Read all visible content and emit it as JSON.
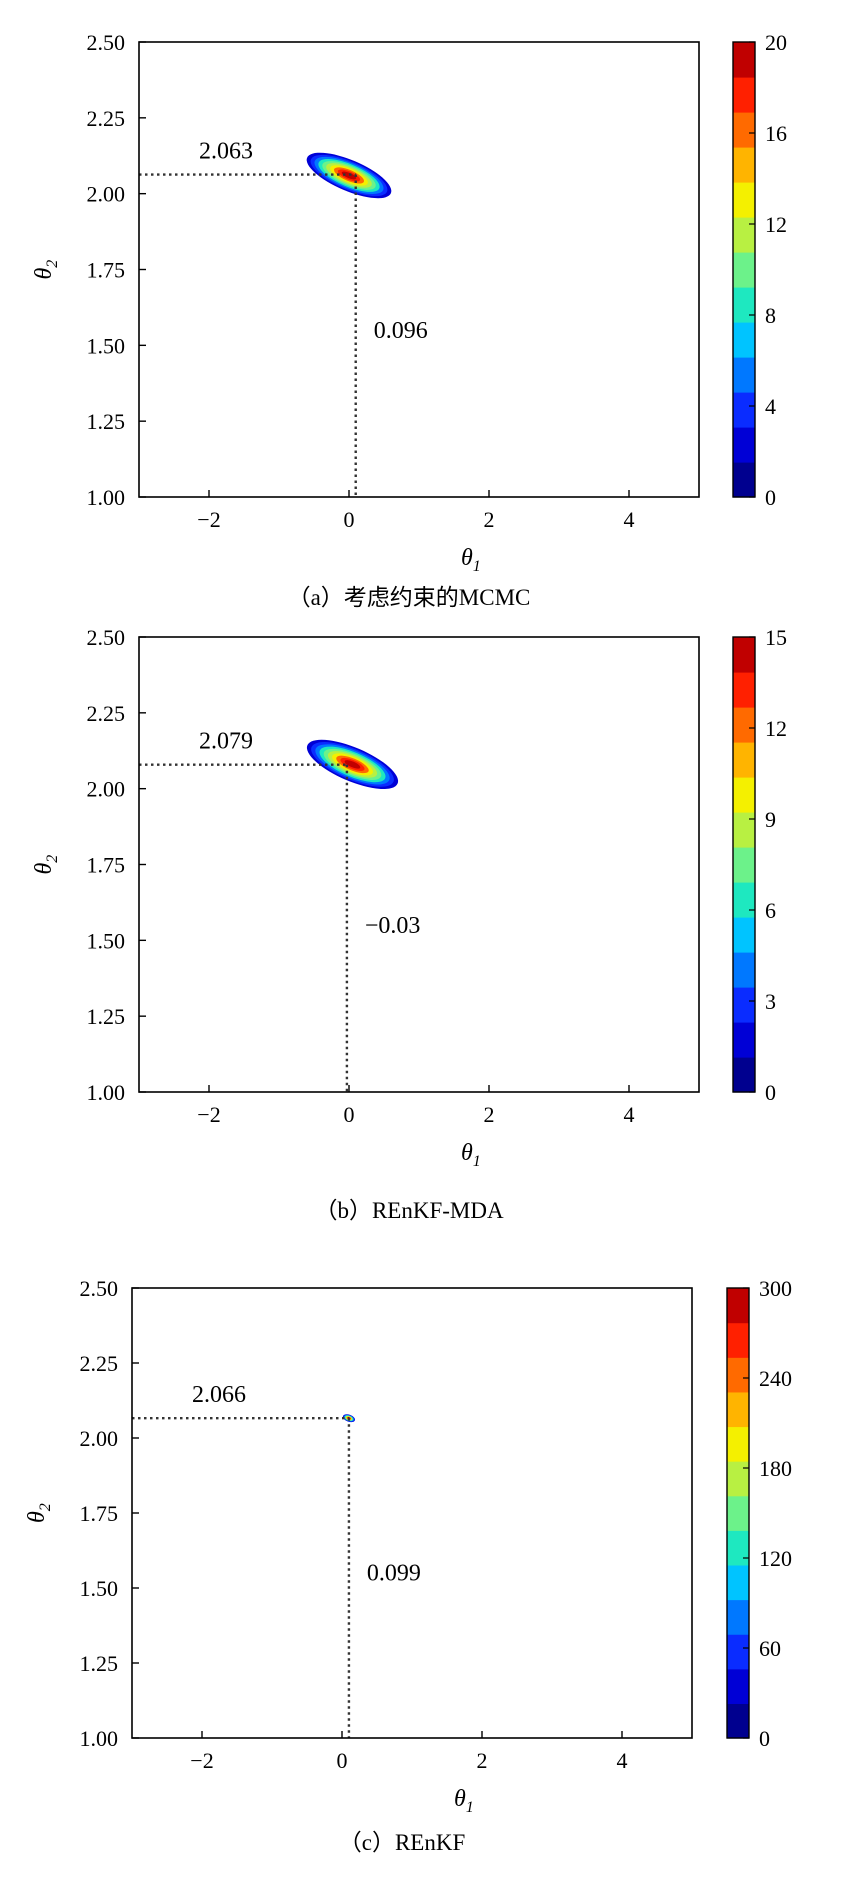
{
  "colormap": [
    "#00008f",
    "#0000d6",
    "#0a2cff",
    "#0078ff",
    "#00c4ff",
    "#1ee8c0",
    "#6cf28a",
    "#b8f042",
    "#f4f000",
    "#ffb400",
    "#ff6a00",
    "#ff2000",
    "#c00000"
  ],
  "chart_data": [
    {
      "type": "heatmap",
      "caption": "（a）考虑约束的MCMC",
      "xlabel": "θ1",
      "ylabel": "θ2",
      "xlim": [
        -3,
        5
      ],
      "ylim": [
        1.0,
        2.5
      ],
      "xticks": [
        "−2",
        "0",
        "2",
        "4"
      ],
      "xtick_values": [
        -2,
        0,
        2,
        4
      ],
      "yticks": [
        "1.00",
        "1.25",
        "1.50",
        "1.75",
        "2.00",
        "2.25",
        "2.50"
      ],
      "ytick_values": [
        1.0,
        1.25,
        1.5,
        1.75,
        2.0,
        2.25,
        2.5
      ],
      "colorbar_range": [
        0,
        20
      ],
      "colorbar_ticks": [
        "0",
        "4",
        "8",
        "12",
        "16",
        "20"
      ],
      "colorbar_tick_values": [
        0,
        4,
        8,
        12,
        16,
        20
      ],
      "peak": {
        "x": 0.0,
        "y": 2.06,
        "value": 20
      },
      "spread": {
        "along": 0.65,
        "across": 0.22,
        "angle_deg": -23
      },
      "marker": {
        "theta1": 0.096,
        "theta2": 2.063,
        "label_theta1": "0.096",
        "label_theta2": "2.063"
      },
      "grid": false
    },
    {
      "type": "heatmap",
      "caption": "（b）REnKF-MDA",
      "xlabel": "θ1",
      "ylabel": "θ2",
      "xlim": [
        -3,
        5
      ],
      "ylim": [
        1.0,
        2.5
      ],
      "xticks": [
        "−2",
        "0",
        "2",
        "4"
      ],
      "xtick_values": [
        -2,
        0,
        2,
        4
      ],
      "yticks": [
        "1.00",
        "1.25",
        "1.50",
        "1.75",
        "2.00",
        "2.25",
        "2.50"
      ],
      "ytick_values": [
        1.0,
        1.25,
        1.5,
        1.75,
        2.0,
        2.25,
        2.5
      ],
      "colorbar_range": [
        0,
        15
      ],
      "colorbar_ticks": [
        "0",
        "3",
        "6",
        "9",
        "12",
        "15"
      ],
      "colorbar_tick_values": [
        0,
        3,
        6,
        9,
        12,
        15
      ],
      "peak": {
        "x": 0.05,
        "y": 2.08,
        "value": 15
      },
      "spread": {
        "along": 0.7,
        "across": 0.24,
        "angle_deg": -23
      },
      "marker": {
        "theta1": -0.03,
        "theta2": 2.079,
        "label_theta1": "−0.03",
        "label_theta2": "2.079"
      },
      "grid": false
    },
    {
      "type": "heatmap",
      "caption": "（c）REnKF",
      "xlabel": "θ1",
      "ylabel": "θ2",
      "xlim": [
        -3,
        5
      ],
      "ylim": [
        1.0,
        2.5
      ],
      "xticks": [
        "−2",
        "0",
        "2",
        "4"
      ],
      "xtick_values": [
        -2,
        0,
        2,
        4
      ],
      "yticks": [
        "1.00",
        "1.25",
        "1.50",
        "1.75",
        "2.00",
        "2.25",
        "2.50"
      ],
      "ytick_values": [
        1.0,
        1.25,
        1.5,
        1.75,
        2.0,
        2.25,
        2.5
      ],
      "colorbar_range": [
        0,
        300
      ],
      "colorbar_ticks": [
        "0",
        "60",
        "120",
        "180",
        "240",
        "300"
      ],
      "colorbar_tick_values": [
        0,
        60,
        120,
        180,
        240,
        300
      ],
      "peak": {
        "x": 0.099,
        "y": 2.066,
        "value": 300
      },
      "spread": {
        "along": 0.09,
        "across": 0.05,
        "angle_deg": -20
      },
      "marker": {
        "theta1": 0.099,
        "theta2": 2.066,
        "label_theta1": "0.099",
        "label_theta2": "2.066"
      },
      "grid": false
    }
  ]
}
